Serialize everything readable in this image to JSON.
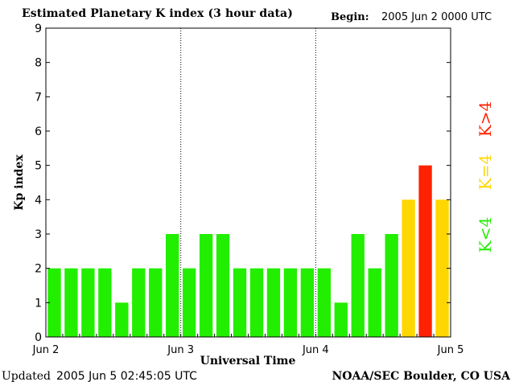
{
  "header": {
    "title": "Estimated Planetary K index (3 hour data)",
    "begin_label": "Begin:",
    "begin_value": "2005 Jun 2 0000 UTC"
  },
  "footer": {
    "updated_label": "Updated",
    "updated_value": "2005 Jun  5 02:45:05 UTC",
    "source": "NOAA/SEC Boulder, CO USA"
  },
  "colors": {
    "low": "#22ee00",
    "equal": "#ffd700",
    "high": "#ff2200",
    "axis": "#000000",
    "divider": "#000000"
  },
  "legend": {
    "low_label": "K<4",
    "equal_label": "K=4",
    "high_label": "K>4"
  },
  "chart_data": {
    "type": "bar",
    "title": "Estimated Planetary K index (3 hour data)",
    "xlabel": "Universal Time",
    "ylabel": "Kp index",
    "ylim": [
      0,
      9
    ],
    "yticks": [
      0,
      1,
      2,
      3,
      4,
      5,
      6,
      7,
      8,
      9
    ],
    "x_tick_labels": [
      "Jun 2",
      "Jun 3",
      "Jun 4",
      "Jun 5"
    ],
    "categories": [
      "Jun 2 00-03",
      "Jun 2 03-06",
      "Jun 2 06-09",
      "Jun 2 09-12",
      "Jun 2 12-15",
      "Jun 2 15-18",
      "Jun 2 18-21",
      "Jun 2 21-24",
      "Jun 3 00-03",
      "Jun 3 03-06",
      "Jun 3 06-09",
      "Jun 3 09-12",
      "Jun 3 12-15",
      "Jun 3 15-18",
      "Jun 3 18-21",
      "Jun 3 21-24",
      "Jun 4 00-03",
      "Jun 4 03-06",
      "Jun 4 06-09",
      "Jun 4 09-12",
      "Jun 4 12-15",
      "Jun 4 15-18",
      "Jun 4 18-21",
      "Jun 4 21-24"
    ],
    "values": [
      2,
      2,
      2,
      2,
      1,
      2,
      2,
      3,
      2,
      3,
      3,
      2,
      2,
      2,
      2,
      2,
      2,
      1,
      3,
      2,
      3,
      4,
      5,
      4
    ],
    "bar_colors": [
      "low",
      "low",
      "low",
      "low",
      "low",
      "low",
      "low",
      "low",
      "low",
      "low",
      "low",
      "low",
      "low",
      "low",
      "low",
      "low",
      "low",
      "low",
      "low",
      "low",
      "low",
      "equal",
      "high",
      "equal"
    ]
  }
}
